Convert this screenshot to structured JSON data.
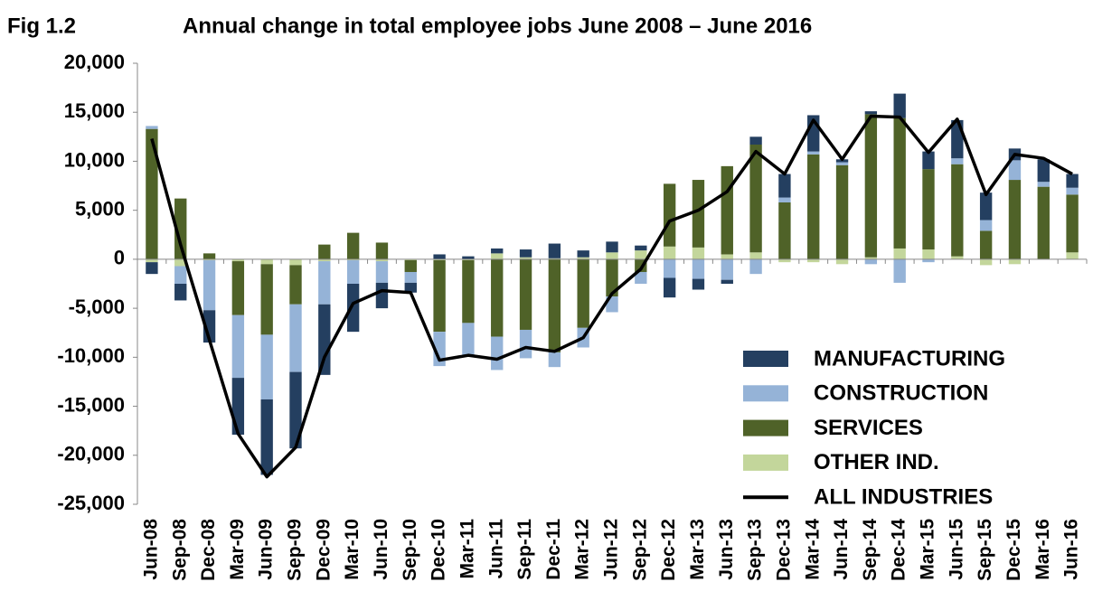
{
  "chart_data": {
    "type": "bar",
    "stacked": true,
    "fig_label": "Fig 1.2",
    "title": "Annual change in total employee jobs June 2008 – June 2016",
    "categories": [
      "Jun-08",
      "Sep-08",
      "Dec-08",
      "Mar-09",
      "Jun-09",
      "Sep-09",
      "Dec-09",
      "Mar-10",
      "Jun-10",
      "Sep-10",
      "Dec-10",
      "Mar-11",
      "Jun-11",
      "Sep-11",
      "Dec-11",
      "Mar-12",
      "Jun-12",
      "Sep-12",
      "Dec-12",
      "Mar-13",
      "Jun-13",
      "Sep-13",
      "Dec-13",
      "Mar-14",
      "Jun-14",
      "Sep-14",
      "Dec-14",
      "Mar-15",
      "Jun-15",
      "Sep-15",
      "Dec-15",
      "Mar-16",
      "Jun-16"
    ],
    "series": [
      {
        "name": "MANUFACTURING",
        "color": "#243f60",
        "values": [
          -1200,
          -1700,
          -3300,
          -5800,
          -7700,
          -7800,
          -7200,
          -4900,
          -2600,
          -1000,
          500,
          300,
          500,
          800,
          1500,
          700,
          1100,
          500,
          -2000,
          -1100,
          -400,
          800,
          2400,
          3700,
          300,
          300,
          2500,
          1800,
          3900,
          2800,
          1200,
          2300,
          1400
        ]
      },
      {
        "name": "CONSTRUCTION",
        "color": "#95b3d7",
        "values": [
          300,
          -1800,
          -5100,
          -6400,
          -6600,
          -6900,
          -4400,
          -2400,
          -2200,
          -1100,
          -3500,
          -3300,
          -3400,
          -2900,
          -1500,
          -2000,
          -1600,
          -1200,
          -1900,
          -2000,
          -2100,
          -1500,
          500,
          300,
          300,
          -500,
          -2400,
          -300,
          600,
          1100,
          2000,
          500,
          700
        ]
      },
      {
        "name": "SERVICES",
        "color": "#4f6228",
        "values": [
          13300,
          6200,
          600,
          -5500,
          -7200,
          -4000,
          1500,
          2700,
          1700,
          -1200,
          -7300,
          -6400,
          -7900,
          -7200,
          -9500,
          -7000,
          -3800,
          -1300,
          6400,
          6900,
          9000,
          11000,
          5800,
          10700,
          9600,
          14600,
          13300,
          8200,
          9400,
          2900,
          8100,
          7400,
          5900
        ]
      },
      {
        "name": "OTHER IND.",
        "color": "#c3d69b",
        "values": [
          -300,
          -700,
          -100,
          -200,
          -500,
          -600,
          -200,
          -100,
          -200,
          -100,
          -100,
          -100,
          600,
          200,
          100,
          200,
          700,
          900,
          1300,
          1200,
          500,
          700,
          -300,
          -300,
          -500,
          200,
          1100,
          1000,
          300,
          -600,
          -500,
          0,
          700
        ]
      },
      {
        "name": "ALL INDUSTRIES",
        "color": "#000000",
        "type": "line",
        "values": [
          12300,
          1500,
          -8200,
          -17800,
          -22200,
          -19200,
          -10000,
          -4500,
          -3200,
          -3400,
          -10300,
          -9800,
          -10200,
          -9000,
          -9400,
          -8000,
          -3500,
          -1000,
          3900,
          5000,
          6900,
          11000,
          8700,
          14200,
          10200,
          14600,
          14500,
          10900,
          14300,
          6600,
          10700,
          10300,
          8700
        ]
      }
    ],
    "ylim": [
      -25000,
      20000
    ],
    "yticks": [
      {
        "value": -25000,
        "label": "-25,000"
      },
      {
        "value": -20000,
        "label": "-20,000"
      },
      {
        "value": -15000,
        "label": "-15,000"
      },
      {
        "value": -10000,
        "label": "-10,000"
      },
      {
        "value": -5000,
        "label": "-5,000"
      },
      0,
      {
        "value": 5000,
        "label": "5,000"
      },
      {
        "value": 10000,
        "label": "10,000"
      },
      {
        "value": 15000,
        "label": "15,000"
      },
      {
        "value": 20000,
        "label": "20,000"
      }
    ],
    "grid": false,
    "legend": "lower right"
  }
}
